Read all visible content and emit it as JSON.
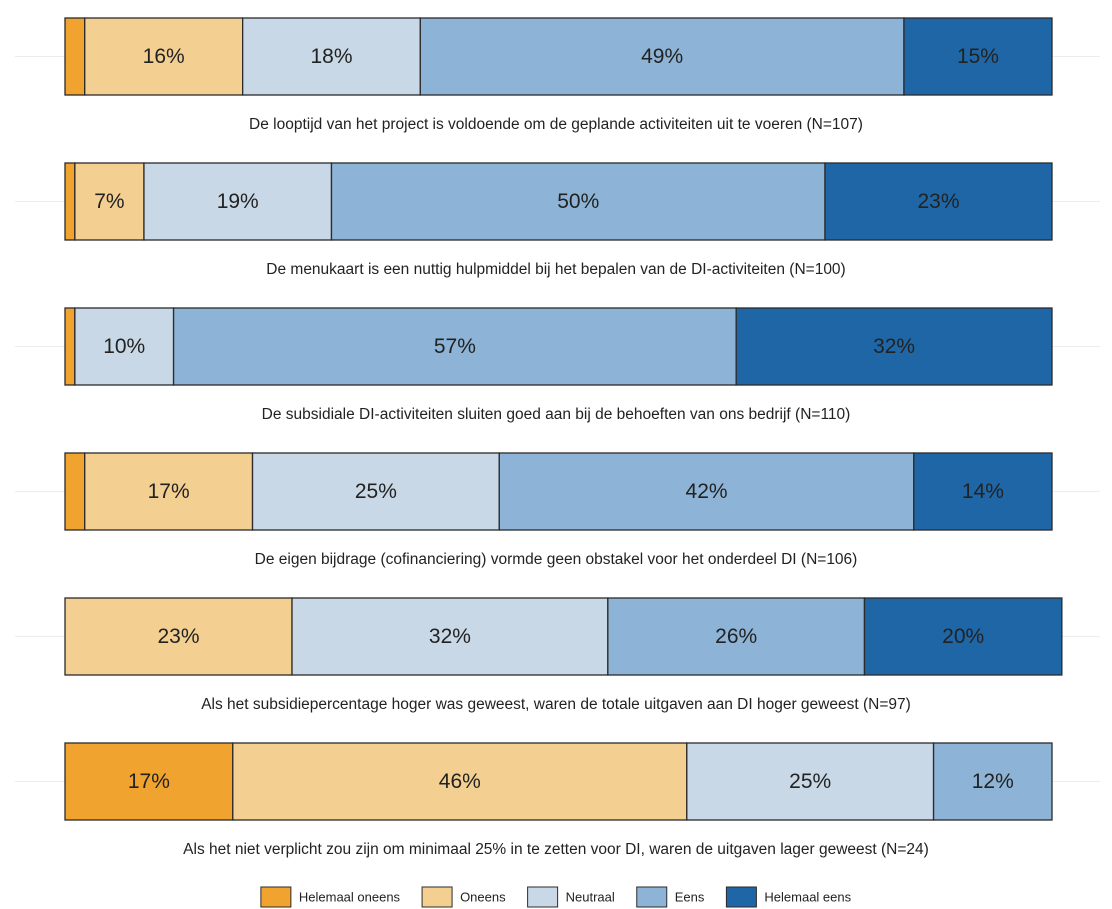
{
  "chart_data": {
    "type": "stacked_barh",
    "categories": [
      "De looptijd van het project is voldoende om de geplande activiteiten uit te voeren (N=107)",
      "De menukaart is een nuttig hulpmiddel bij het bepalen van de DI-activiteiten (N=100)",
      "De subsidiale DI-activiteiten sluiten goed aan bij de behoeften van ons bedrijf (N=110)",
      "De eigen bijdrage (cofinanciering) vormde geen obstakel voor het onderdeel DI (N=106)",
      "Als het subsidiepercentage hoger was geweest, waren de totale uitgaven aan DI hoger geweest (N=97)",
      "Als het niet verplicht zou zijn om minimaal 25% in te zetten voor DI, waren de uitgaven lager geweest (N=24)"
    ],
    "xlim": [
      0,
      100
    ],
    "series": [
      {
        "name": "Helemaal oneens",
        "color": "#f0a32f",
        "values": [
          2,
          1,
          1,
          2,
          0,
          17
        ],
        "value_labels": [
          null,
          null,
          null,
          null,
          null,
          "17%"
        ]
      },
      {
        "name": "Oneens",
        "color": "#f4cf92",
        "values": [
          16,
          7,
          0,
          17,
          23,
          46
        ],
        "value_labels": [
          "16%",
          "7%",
          null,
          "17%",
          "23%",
          "46%"
        ]
      },
      {
        "name": "Neutraal",
        "color": "#c9d8e6",
        "values": [
          18,
          19,
          10,
          25,
          32,
          25
        ],
        "value_labels": [
          "18%",
          "19%",
          "10%",
          "25%",
          "32%",
          "25%"
        ]
      },
      {
        "name": "Eens",
        "color": "#8db4d6",
        "values": [
          49,
          50,
          57,
          42,
          26,
          12
        ],
        "value_labels": [
          "49%",
          "50%",
          "57%",
          "42%",
          "26%",
          "12%"
        ]
      },
      {
        "name": "Helemaal eens",
        "color": "#1f66a6",
        "values": [
          15,
          23,
          32,
          14,
          20,
          0
        ],
        "value_labels": [
          "15%",
          "23%",
          "32%",
          "14%",
          "20%",
          null
        ]
      }
    ],
    "legend": "bottom"
  }
}
